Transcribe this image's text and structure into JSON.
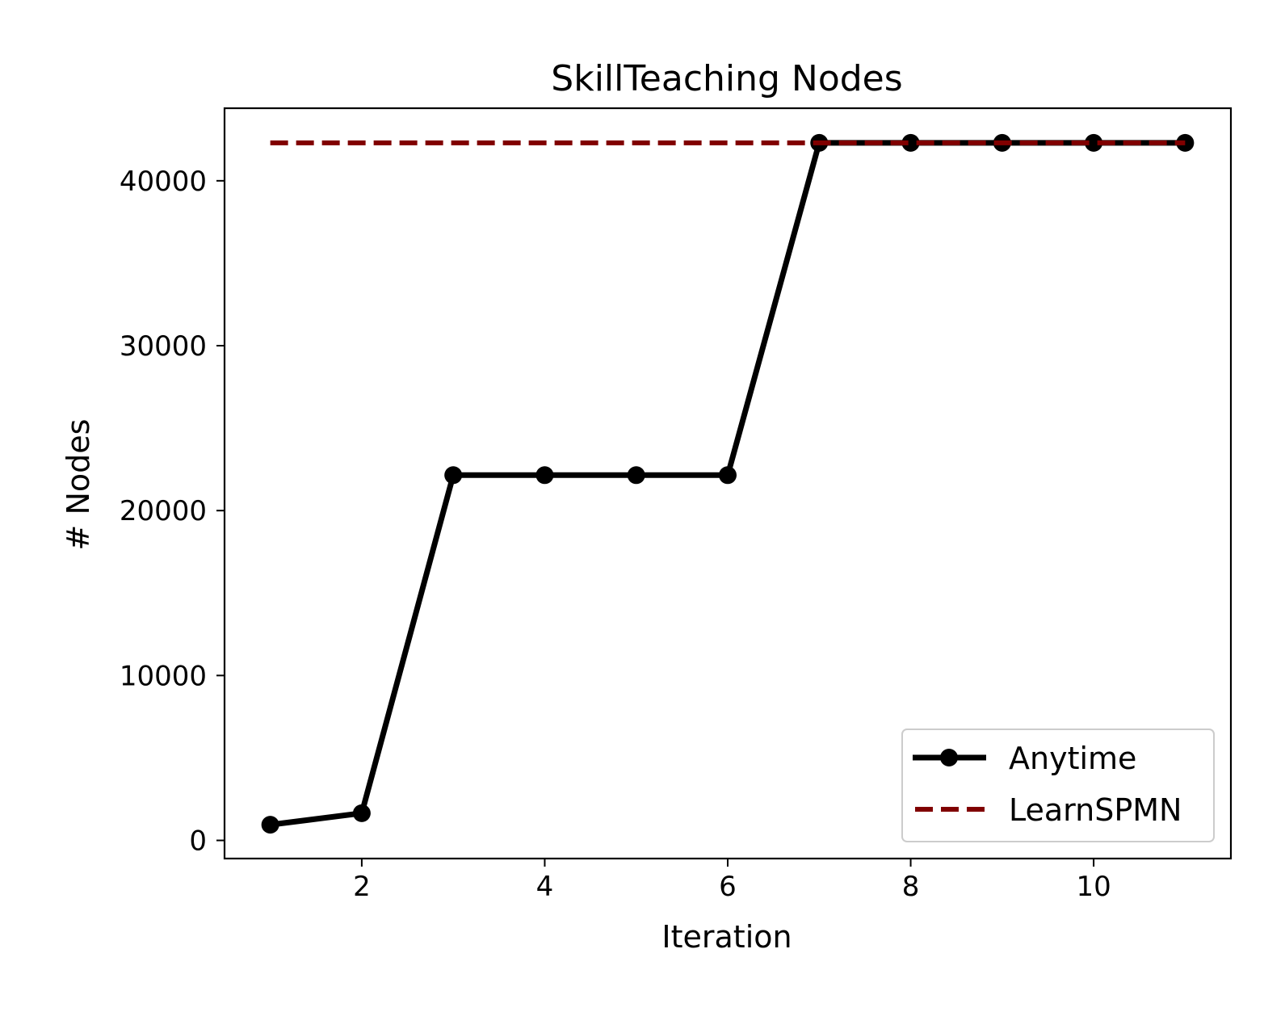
{
  "chart_data": {
    "type": "line",
    "title": "SkillTeaching Nodes",
    "xlabel": "Iteration",
    "ylabel": "# Nodes",
    "xlim": [
      0.5,
      11.5
    ],
    "ylim": [
      -1100,
      44400
    ],
    "x_ticks": [
      2,
      4,
      6,
      8,
      10
    ],
    "y_ticks": [
      0,
      10000,
      20000,
      30000,
      40000
    ],
    "grid": false,
    "legend_position": "lower-right",
    "series": [
      {
        "name": "Anytime",
        "style": "solid-with-markers",
        "color": "#000000",
        "x": [
          1,
          2,
          3,
          4,
          5,
          6,
          7,
          8,
          9,
          10,
          11
        ],
        "values": [
          950,
          1650,
          22150,
          22150,
          22150,
          22150,
          42300,
          42300,
          42300,
          42300,
          42300
        ]
      },
      {
        "name": "LearnSPMN",
        "style": "dashed",
        "color": "#800000",
        "x": [
          1,
          11
        ],
        "values": [
          42300,
          42300
        ]
      }
    ]
  }
}
